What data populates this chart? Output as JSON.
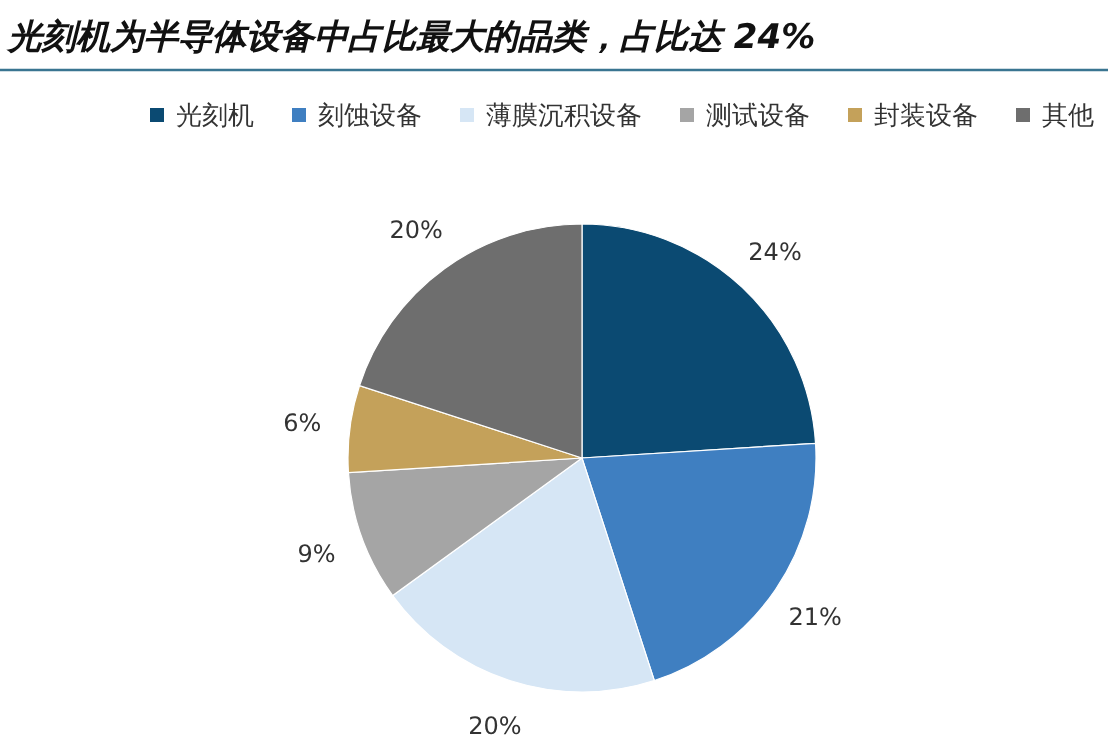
{
  "chart_data": {
    "type": "pie",
    "title": "光刻机为半导体设备中占比最大的品类，占比达 24%",
    "categories": [
      "光刻机",
      "刻蚀设备",
      "薄膜沉积设备",
      "测试设备",
      "封装设备",
      "其他"
    ],
    "values": [
      24,
      21,
      20,
      9,
      6,
      20
    ],
    "colors": [
      "#0b4a72",
      "#3f7fc1",
      "#d6e6f5",
      "#a5a5a5",
      "#c4a15a",
      "#6e6e6e"
    ],
    "value_labels": [
      "24%",
      "21%",
      "20%",
      "9%",
      "6%",
      "20%"
    ],
    "legend": "top"
  }
}
